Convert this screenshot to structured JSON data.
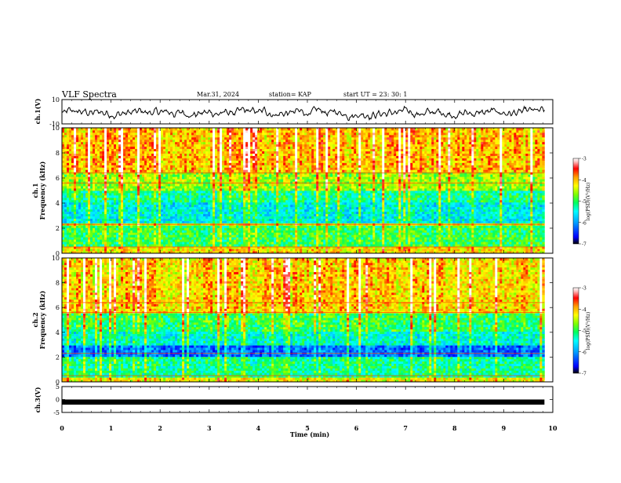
{
  "header": {
    "title": "VLF Spectra",
    "date": "Mar.31, 2024",
    "station": "station= KAP",
    "start": "start UT = 23: 30: 1"
  },
  "colors": {
    "colormap": [
      "#000000",
      "#0000ff",
      "#00a0ff",
      "#00ffff",
      "#00ff60",
      "#80ff00",
      "#ffff00",
      "#ffa000",
      "#ff0000",
      "#ffc0c0",
      "#ffffff"
    ]
  },
  "chart_data": [
    {
      "type": "line",
      "id": "ch1-voltage",
      "ylabel": "ch.1(V)",
      "ylim": [
        -10,
        10
      ],
      "yticks": [
        "10",
        "-10"
      ],
      "xlim": [
        0,
        10
      ],
      "x_extent": [
        0,
        9.83
      ],
      "series": [
        {
          "values_shape": "noisy waveform",
          "mean": -1.0,
          "amplitude": 5.0
        }
      ]
    },
    {
      "type": "heatmap",
      "id": "ch1-spectrogram",
      "ylabel_line1": "ch.1",
      "ylabel_line2": "Frequency (kHz)",
      "ylim": [
        0,
        10
      ],
      "yticks": [
        "0",
        "2",
        "4",
        "6",
        "8",
        "10"
      ],
      "xlim": [
        0,
        10
      ],
      "x_extent": [
        0,
        9.83
      ],
      "colorbar": {
        "label": "log(PSD)(V²/Hz)",
        "range": [
          -7,
          -3
        ],
        "ticks": [
          "-3",
          "-4",
          "-5",
          "-6",
          "-7"
        ]
      },
      "bands": [
        {
          "f": [
            0,
            0.6
          ],
          "level": -4.2
        },
        {
          "f": [
            0.6,
            2.2
          ],
          "level": -5.0
        },
        {
          "f": [
            2.2,
            2.5
          ],
          "level": -4.3
        },
        {
          "f": [
            2.5,
            4.0
          ],
          "level": -5.5
        },
        {
          "f": [
            4.0,
            5.0
          ],
          "level": -5.2
        },
        {
          "f": [
            5.0,
            6.5
          ],
          "level": -4.6
        },
        {
          "f": [
            6.5,
            10
          ],
          "level": -4.0
        }
      ]
    },
    {
      "type": "heatmap",
      "id": "ch2-spectrogram",
      "ylabel_line1": "ch.2",
      "ylabel_line2": "Frequency (kHz)",
      "ylim": [
        0,
        10
      ],
      "yticks": [
        "0",
        "2",
        "4",
        "6",
        "8",
        "10"
      ],
      "xlim": [
        0,
        10
      ],
      "x_extent": [
        0,
        9.83
      ],
      "colorbar": {
        "label": "log(PSD)(V²/Hz)",
        "range": [
          -7,
          -3
        ],
        "ticks": [
          "-3",
          "-4",
          "-5",
          "-6",
          "-7"
        ]
      },
      "bands": [
        {
          "f": [
            0,
            0.4
          ],
          "level": -4.3
        },
        {
          "f": [
            0.4,
            2.0
          ],
          "level": -5.2
        },
        {
          "f": [
            2.0,
            3.0
          ],
          "level": -6.2
        },
        {
          "f": [
            3.0,
            4.0
          ],
          "level": -5.4
        },
        {
          "f": [
            4.0,
            5.5
          ],
          "level": -5.0
        },
        {
          "f": [
            5.5,
            10
          ],
          "level": -4.1
        }
      ]
    },
    {
      "type": "line",
      "id": "ch3-voltage",
      "ylabel": "ch.3(V)",
      "ylim": [
        -5,
        5
      ],
      "yticks": [
        "5",
        "0",
        "-5"
      ],
      "xlim": [
        0,
        10
      ],
      "x_extent": [
        0,
        9.83
      ],
      "series": [
        {
          "values_shape": "flat band",
          "mean": -1.0,
          "amplitude": 0.4
        }
      ]
    }
  ],
  "xaxis": {
    "label": "Time (min)",
    "ticks": [
      "0",
      "1",
      "2",
      "3",
      "4",
      "5",
      "6",
      "7",
      "8",
      "9",
      "10"
    ]
  }
}
